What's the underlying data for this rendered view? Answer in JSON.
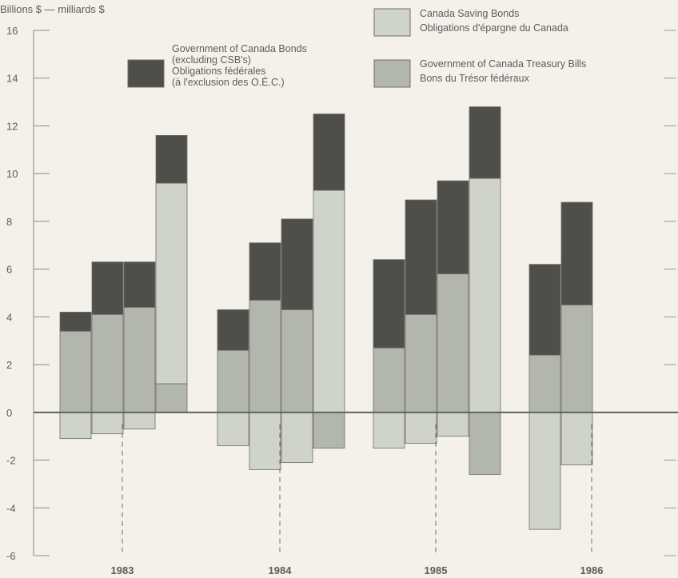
{
  "chart_data": {
    "type": "bar",
    "y_unit_label": "Billions $ — milliards $",
    "ylim": [
      -6,
      16
    ],
    "yticks": [
      "-6",
      "-4",
      "-2",
      "0",
      "2",
      "4",
      "6",
      "8",
      "10",
      "12",
      "14",
      "16"
    ],
    "year_labels": [
      "1983",
      "1984",
      "1985",
      "1986"
    ],
    "legend": [
      {
        "name": "Government of Canada Bonds (excluding CSB's)",
        "lines": [
          "Government of Canada Bonds",
          "(excluding CSB's)"
        ],
        "lines_fr": [
          "Obligations fédérales",
          "(à l'exclusion des O.É.C.)"
        ],
        "color": "#4e4e4a"
      },
      {
        "name": "Canada Saving Bonds",
        "lines": [
          "Canada Saving Bonds"
        ],
        "lines_fr": [
          "Obligations d'épargne du Canada"
        ],
        "color": "#cfd3c9"
      },
      {
        "name": "Government of Canada Treasury Bills",
        "lines": [
          "Government of Canada Treasury Bills"
        ],
        "lines_fr": [
          "Bons du Trésor fédéraux"
        ],
        "color": "#b3b6ad"
      }
    ],
    "groups": [
      {
        "year": "1983",
        "quarters": [
          {
            "tbills": 3.4,
            "csb": -1.1,
            "bonds": 0.8
          },
          {
            "tbills": 4.1,
            "csb": -0.9,
            "bonds": 2.2
          },
          {
            "tbills": 4.4,
            "csb": -0.7,
            "bonds": 1.9
          },
          {
            "tbills": 1.2,
            "csb": 8.4,
            "bonds": 2.0
          }
        ]
      },
      {
        "year": "1984",
        "quarters": [
          {
            "tbills": 2.6,
            "csb": -1.4,
            "bonds": 1.7
          },
          {
            "tbills": 4.7,
            "csb": -2.4,
            "bonds": 2.4
          },
          {
            "tbills": 4.3,
            "csb": -2.1,
            "bonds": 3.8
          },
          {
            "tbills": -1.5,
            "csb": 9.3,
            "bonds": 3.2
          }
        ]
      },
      {
        "year": "1985",
        "quarters": [
          {
            "tbills": 2.7,
            "csb": -1.5,
            "bonds": 3.7
          },
          {
            "tbills": 4.1,
            "csb": -1.3,
            "bonds": 4.8
          },
          {
            "tbills": 5.8,
            "csb": -1.0,
            "bonds": 3.9
          },
          {
            "tbills": -2.6,
            "csb": 9.8,
            "bonds": 3.0
          }
        ]
      },
      {
        "year": "1986",
        "quarters": [
          {
            "tbills": 2.4,
            "csb": -4.9,
            "bonds": 3.8
          },
          {
            "tbills": 4.5,
            "csb": -2.2,
            "bonds": 4.3
          }
        ]
      }
    ]
  }
}
